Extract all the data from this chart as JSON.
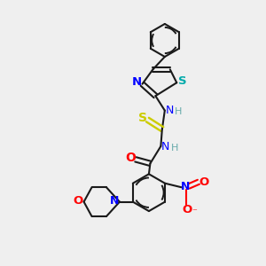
{
  "bg_color": "#efefef",
  "bond_color": "#1a1a1a",
  "N_color": "#0000ff",
  "O_color": "#ff0000",
  "S_color": "#cccc00",
  "S_thiazole_color": "#00aaaa",
  "H_color": "#66aaaa",
  "figsize": [
    3.0,
    3.0
  ],
  "dpi": 100,
  "xlim": [
    0,
    10
  ],
  "ylim": [
    0,
    10
  ]
}
